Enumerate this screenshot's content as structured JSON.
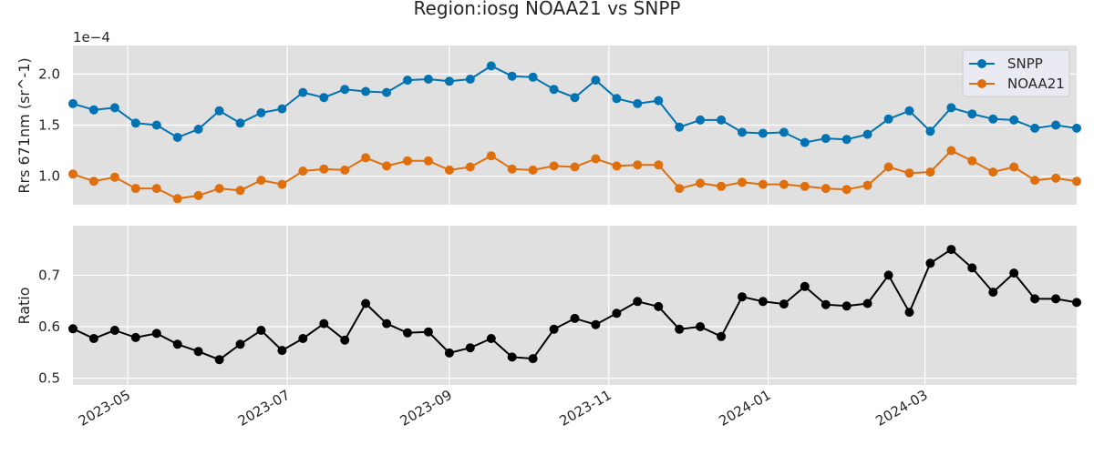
{
  "chart_data": {
    "title": "Region:iosg NOAA21 vs SNPP",
    "type": "line",
    "x_ticks": [
      "2023-05",
      "2023-07",
      "2023-09",
      "2023-11",
      "2024-01",
      "2024-03"
    ],
    "dates": [
      "2023-04-10",
      "2023-04-18",
      "2023-04-26",
      "2023-05-04",
      "2023-05-12",
      "2023-05-20",
      "2023-05-28",
      "2023-06-05",
      "2023-06-13",
      "2023-06-21",
      "2023-06-29",
      "2023-07-07",
      "2023-07-15",
      "2023-07-23",
      "2023-07-31",
      "2023-08-08",
      "2023-08-16",
      "2023-08-24",
      "2023-09-01",
      "2023-09-09",
      "2023-09-17",
      "2023-09-25",
      "2023-10-03",
      "2023-10-11",
      "2023-10-19",
      "2023-10-27",
      "2023-11-04",
      "2023-11-12",
      "2023-11-20",
      "2023-11-28",
      "2023-12-06",
      "2023-12-14",
      "2023-12-22",
      "2023-12-30",
      "2024-01-07",
      "2024-01-15",
      "2024-01-23",
      "2024-01-31",
      "2024-02-08",
      "2024-02-16",
      "2024-02-24",
      "2024-03-03",
      "2024-03-11",
      "2024-03-19",
      "2024-03-27",
      "2024-04-04",
      "2024-04-12",
      "2024-04-20",
      "2024-04-28"
    ],
    "panels": [
      {
        "ylabel": "Rrs 671nm (sr^-1)",
        "offset_text": "1e−4",
        "yticks": [
          1.0,
          1.5,
          2.0
        ],
        "ytick_labels": [
          "1.0",
          "1.5",
          "2.0"
        ],
        "ylim": [
          0.72,
          2.28
        ],
        "legend_position": "upper right",
        "series": [
          {
            "name": "SNPP",
            "color": "#0173b2",
            "values": [
              1.71,
              1.65,
              1.67,
              1.52,
              1.5,
              1.38,
              1.46,
              1.64,
              1.52,
              1.62,
              1.66,
              1.82,
              1.77,
              1.85,
              1.83,
              1.82,
              1.94,
              1.95,
              1.93,
              1.95,
              2.08,
              1.98,
              1.97,
              1.85,
              1.77,
              1.94,
              1.76,
              1.71,
              1.74,
              1.48,
              1.55,
              1.55,
              1.43,
              1.42,
              1.43,
              1.33,
              1.37,
              1.36,
              1.41,
              1.56,
              1.64,
              1.44,
              1.67,
              1.61,
              1.56,
              1.55,
              1.47,
              1.5,
              1.47
            ]
          },
          {
            "name": "NOAA21",
            "color": "#de6f0c",
            "values": [
              1.02,
              0.95,
              0.99,
              0.88,
              0.88,
              0.78,
              0.81,
              0.88,
              0.86,
              0.96,
              0.92,
              1.05,
              1.07,
              1.06,
              1.18,
              1.1,
              1.15,
              1.15,
              1.06,
              1.09,
              1.2,
              1.07,
              1.06,
              1.1,
              1.09,
              1.17,
              1.1,
              1.11,
              1.11,
              0.88,
              0.93,
              0.9,
              0.94,
              0.92,
              0.92,
              0.9,
              0.88,
              0.87,
              0.91,
              1.09,
              1.03,
              1.04,
              1.25,
              1.15,
              1.04,
              1.09,
              0.96,
              0.98,
              0.95
            ]
          }
        ]
      },
      {
        "ylabel": "Ratio",
        "yticks": [
          0.5,
          0.6,
          0.7
        ],
        "ytick_labels": [
          "0.5",
          "0.6",
          "0.7"
        ],
        "ylim": [
          0.487,
          0.796
        ],
        "series": [
          {
            "color": "#000000",
            "values": [
              0.596,
              0.577,
              0.593,
              0.579,
              0.587,
              0.566,
              0.552,
              0.536,
              0.566,
              0.593,
              0.554,
              0.577,
              0.606,
              0.574,
              0.645,
              0.606,
              0.588,
              0.59,
              0.549,
              0.559,
              0.577,
              0.541,
              0.538,
              0.595,
              0.616,
              0.604,
              0.626,
              0.649,
              0.639,
              0.595,
              0.6,
              0.581,
              0.658,
              0.649,
              0.644,
              0.678,
              0.643,
              0.64,
              0.645,
              0.7,
              0.628,
              0.723,
              0.75,
              0.714,
              0.667,
              0.704,
              0.654,
              0.654,
              0.647
            ]
          }
        ]
      }
    ],
    "grid": true
  }
}
